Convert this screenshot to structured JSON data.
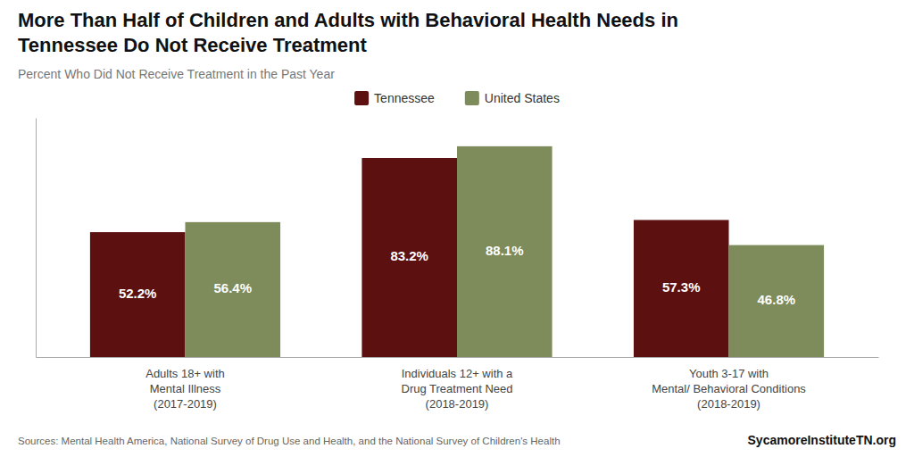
{
  "chart_data": {
    "type": "bar",
    "title": "More Than Half of Children and Adults with Behavioral Health Needs in\nTennessee Do Not Receive Treatment",
    "subtitle": "Percent Who Did Not Receive Treatment in the Past Year",
    "categories": [
      "Adults 18+ with\nMental Illness\n(2017-2019)",
      "Individuals 12+ with a\nDrug Treatment Need\n(2018-2019)",
      "Youth 3-17 with\nMental/ Behavioral Conditions\n(2018-2019)"
    ],
    "series": [
      {
        "name": "Tennessee",
        "color": "#5C1010",
        "values": [
          52.2,
          83.2,
          57.3
        ],
        "value_labels": [
          "52.2%",
          "83.2%",
          "57.3%"
        ]
      },
      {
        "name": "United States",
        "color": "#7D8C5A",
        "values": [
          56.4,
          88.1,
          46.8
        ],
        "value_labels": [
          "56.4%",
          "88.1%",
          "46.8%"
        ]
      }
    ],
    "ylim": [
      0,
      100
    ],
    "tick_labels": "x",
    "grid": false,
    "legend": "top",
    "data_labels": true,
    "annotations": [
      "Sources: Mental Health America, National Survey of Drug Use and Health, and the National Survey of Children's Health",
      "SycamoreInstituteTN.org"
    ]
  }
}
